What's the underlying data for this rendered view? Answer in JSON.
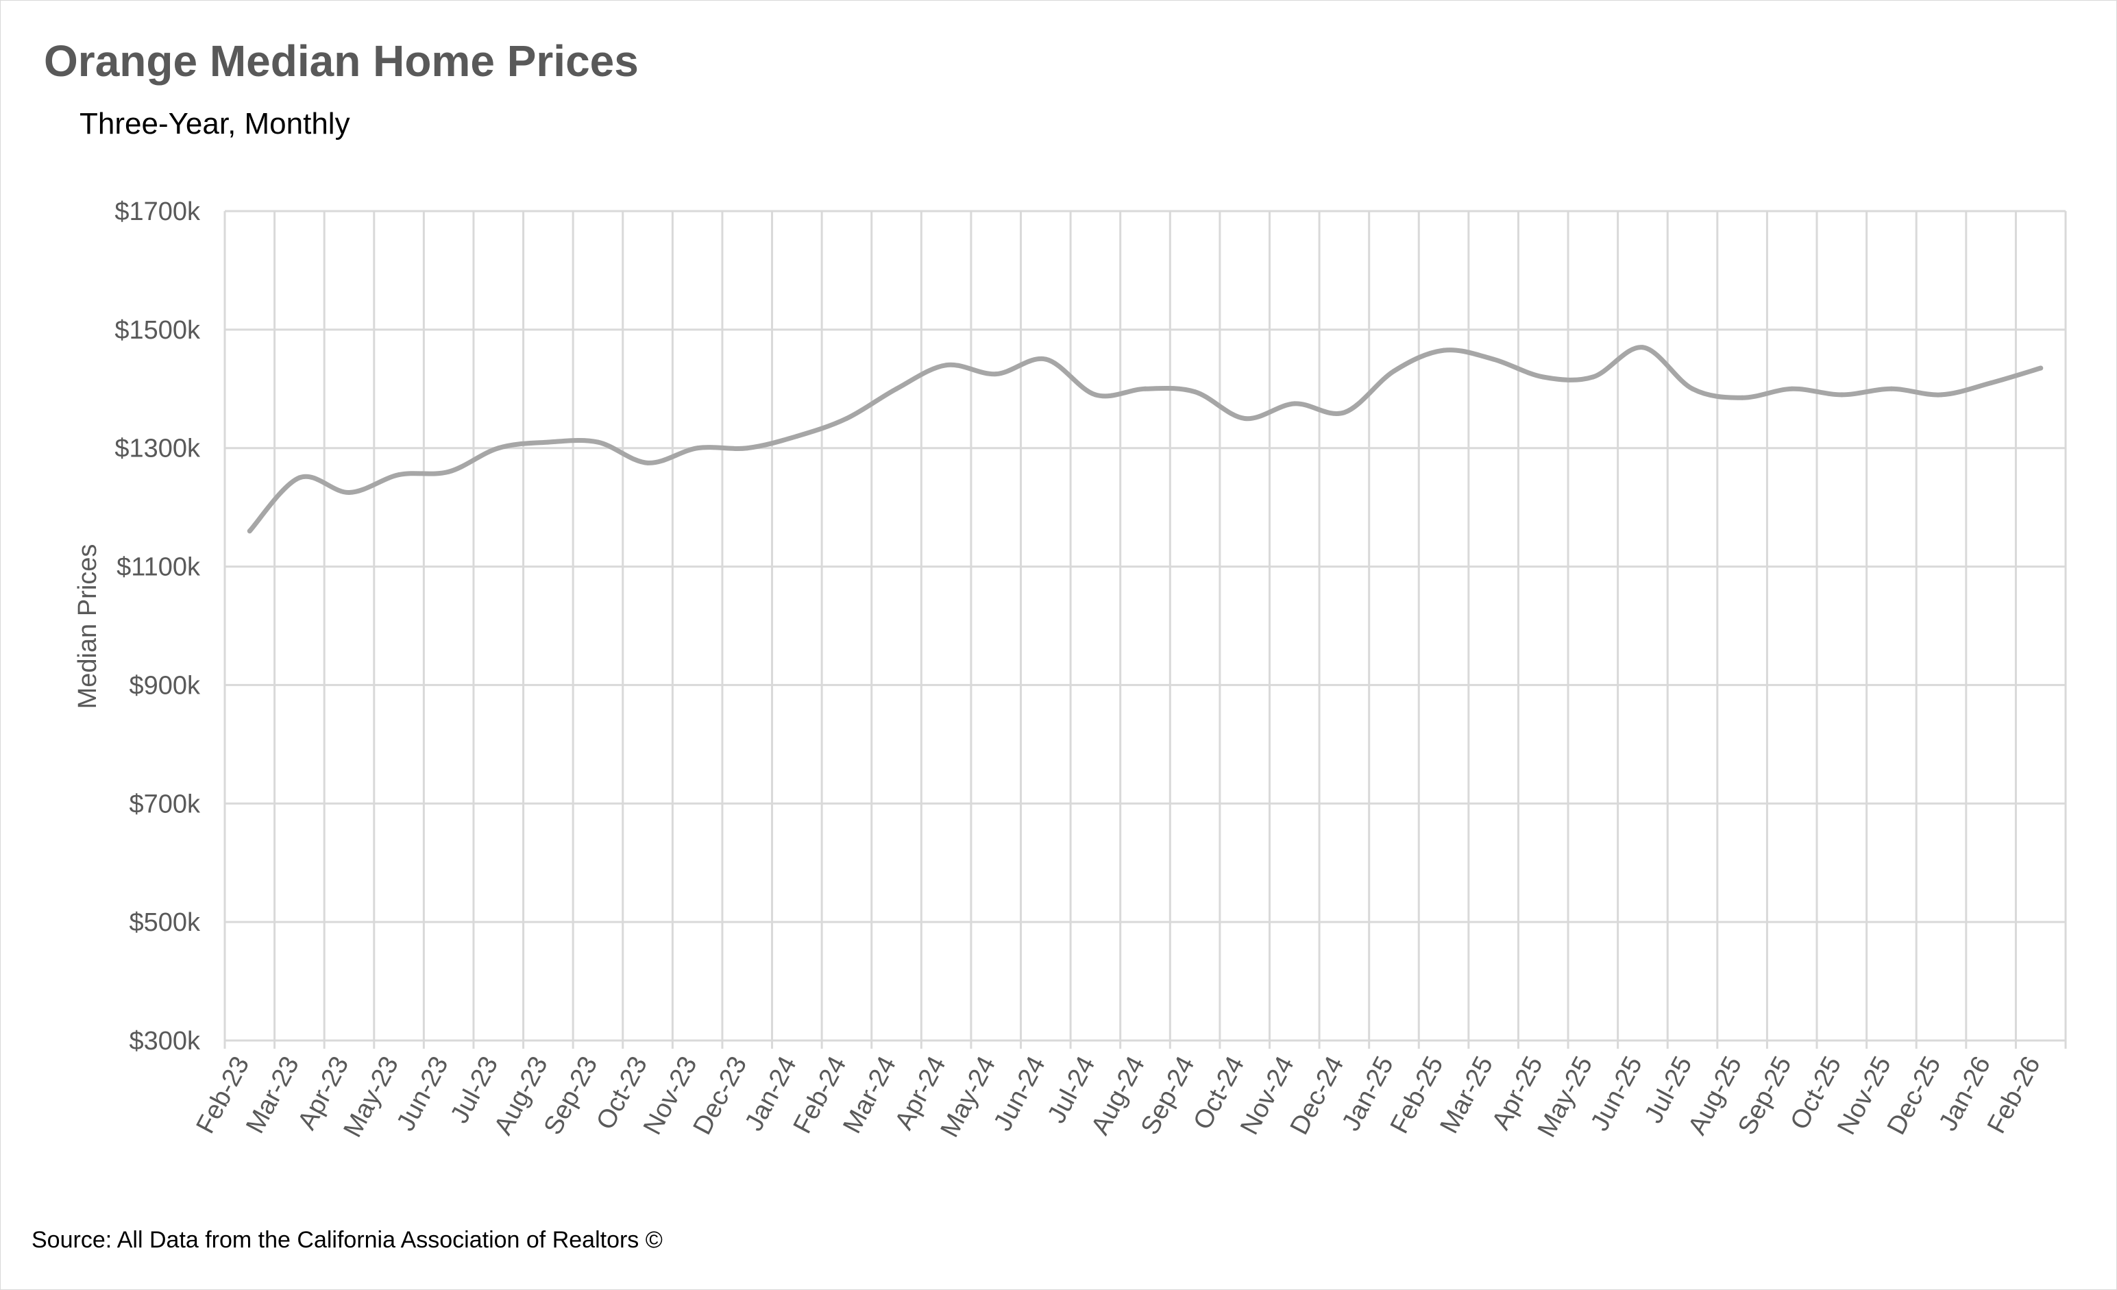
{
  "title": "Orange Median Home Prices",
  "subtitle": "Three-Year, Monthly",
  "source": "Source: All Data from the California Association of Realtors ©",
  "colors": {
    "line": "#a6a6a6",
    "grid": "#d9d9d9",
    "axis_text": "#595959"
  },
  "chart_data": {
    "type": "line",
    "title": "Orange Median Home Prices",
    "subtitle": "Three-Year, Monthly",
    "xlabel": "",
    "ylabel": "Median Prices",
    "ylim": [
      300,
      1700
    ],
    "y_ticks": [
      300,
      500,
      700,
      900,
      1100,
      1300,
      1500,
      1700
    ],
    "y_tick_labels": [
      "$300k",
      "$500k",
      "$700k",
      "$900k",
      "$1100k",
      "$1300k",
      "$1500k",
      "$1700k"
    ],
    "grid": true,
    "legend": "none",
    "categories": [
      "Feb-23",
      "Mar-23",
      "Apr-23",
      "May-23",
      "Jun-23",
      "Jul-23",
      "Aug-23",
      "Sep-23",
      "Oct-23",
      "Nov-23",
      "Dec-23",
      "Jan-24",
      "Feb-24",
      "Mar-24",
      "Apr-24",
      "May-24",
      "Jun-24",
      "Jul-24",
      "Aug-24",
      "Sep-24",
      "Oct-24",
      "Nov-24",
      "Dec-24",
      "Jan-25",
      "Feb-25",
      "Mar-25",
      "Apr-25",
      "May-25",
      "Jun-25",
      "Jul-25",
      "Aug-25",
      "Sep-25",
      "Oct-25",
      "Nov-25",
      "Dec-25",
      "Jan-26",
      "Feb-26"
    ],
    "series": [
      {
        "values": [
          1160,
          1250,
          1225,
          1255,
          1260,
          1300,
          1310,
          1310,
          1275,
          1300,
          1300,
          1320,
          1350,
          1400,
          1440,
          1425,
          1450,
          1390,
          1400,
          1395,
          1350,
          1375,
          1360,
          1430,
          1465,
          1450,
          1420,
          1420,
          1470,
          1400,
          1385,
          1400,
          1390,
          1400,
          1390,
          1410,
          1435
        ]
      }
    ]
  }
}
